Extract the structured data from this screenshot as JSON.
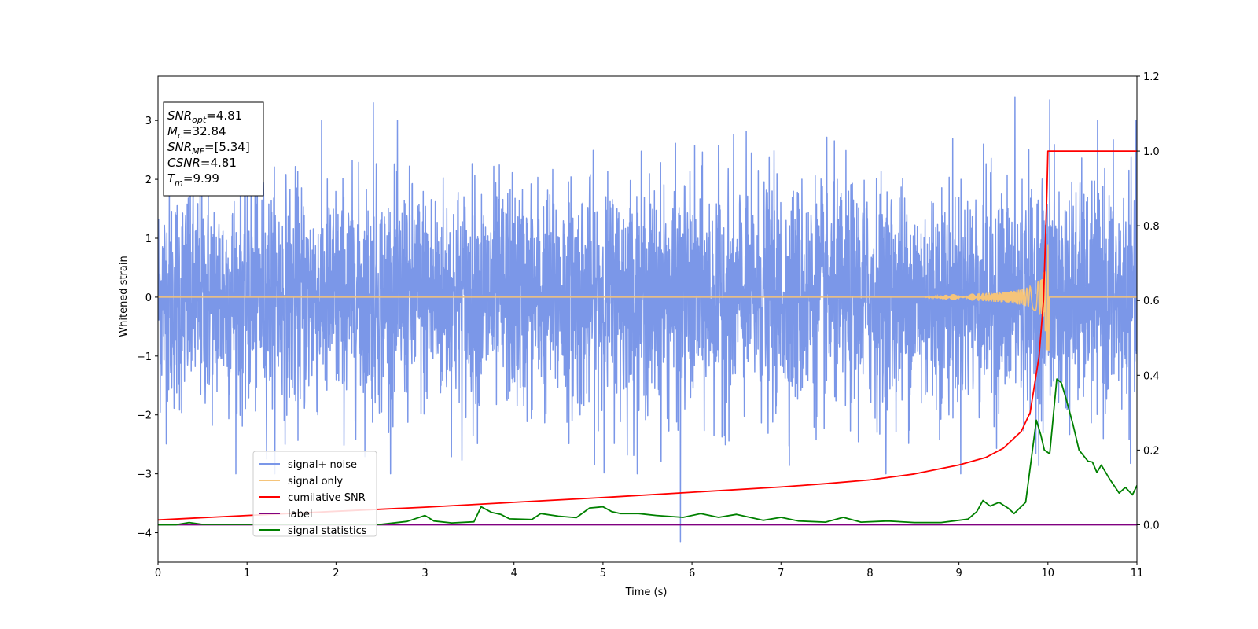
{
  "chart_data": {
    "type": "line",
    "xlabel": "Time (s)",
    "ylabel": "Whitened strain",
    "xlim": [
      0,
      11
    ],
    "ylim_left": [
      -4.5,
      3.75
    ],
    "ylim_right": [
      -0.1,
      1.2
    ],
    "xticks": [
      "0",
      "1",
      "2",
      "3",
      "4",
      "5",
      "6",
      "7",
      "8",
      "9",
      "10",
      "11"
    ],
    "yticks_left": [
      "−4",
      "−3",
      "−2",
      "−1",
      "0",
      "1",
      "2",
      "3"
    ],
    "yticks_right": [
      "0.0",
      "0.2",
      "0.4",
      "0.6",
      "0.8",
      "1.0",
      "1.2"
    ],
    "grid": false,
    "legend_position": "lower-left",
    "info_box": {
      "lines": [
        {
          "main": "SNR",
          "sub": "opt",
          "value": "=4.81"
        },
        {
          "main": "M",
          "sub": "c",
          "value": "=32.84"
        },
        {
          "main": "SNR",
          "sub": "MF",
          "value": "=[5.34]"
        },
        {
          "main": "CSNR",
          "sub": "",
          "value": "=4.81"
        },
        {
          "main": "T",
          "sub": "m",
          "value": "=9.99"
        }
      ]
    },
    "series": [
      {
        "name": "signal+ noise",
        "color": "#7b97e8",
        "axis": "left",
        "description_stats": {
          "range": [
            -4.2,
            3.4
          ],
          "typical_std": 0.95,
          "start": 0,
          "end": 11,
          "peaks": [
            [
              2.42,
              3.3
            ],
            [
              10.02,
              3.35
            ],
            [
              9.63,
              3.4
            ],
            [
              5.87,
              -4.15
            ]
          ]
        }
      },
      {
        "name": "signal only",
        "color": "#f5c47a",
        "axis": "left",
        "chirp": {
          "start_time": 8.6,
          "merger_time": 9.99,
          "peak_amplitude": 0.9
        }
      },
      {
        "name": "cumilative SNR",
        "color": "#ff0000",
        "axis": "right",
        "x": [
          0,
          1,
          2,
          3,
          4,
          5,
          6,
          7,
          7.5,
          8,
          8.5,
          9,
          9.3,
          9.5,
          9.7,
          9.8,
          9.9,
          9.95,
          9.99,
          10.0,
          11
        ],
        "y": [
          0.013,
          0.025,
          0.036,
          0.047,
          0.06,
          0.073,
          0.087,
          0.101,
          0.11,
          0.12,
          0.136,
          0.16,
          0.18,
          0.205,
          0.25,
          0.3,
          0.45,
          0.6,
          0.9,
          1.0,
          1.0
        ]
      },
      {
        "name": "label",
        "color": "#800080",
        "axis": "right",
        "x": [
          0,
          11
        ],
        "y": [
          0.0,
          0.0
        ]
      },
      {
        "name": "signal statistics",
        "color": "#008000",
        "axis": "right",
        "x": [
          0,
          0.2,
          0.35,
          0.5,
          1,
          1.5,
          2,
          2.5,
          2.8,
          3.0,
          3.1,
          3.3,
          3.55,
          3.63,
          3.75,
          3.85,
          3.95,
          4.2,
          4.3,
          4.5,
          4.7,
          4.85,
          5.0,
          5.1,
          5.2,
          5.4,
          5.6,
          5.9,
          6.1,
          6.3,
          6.5,
          6.8,
          7.0,
          7.2,
          7.5,
          7.7,
          7.9,
          8.2,
          8.5,
          8.8,
          9.1,
          9.2,
          9.27,
          9.35,
          9.45,
          9.55,
          9.62,
          9.75,
          9.87,
          9.92,
          9.96,
          10.02,
          10.1,
          10.15,
          10.2,
          10.28,
          10.35,
          10.45,
          10.5,
          10.55,
          10.6,
          10.7,
          10.8,
          10.87,
          10.95,
          11
        ],
        "y": [
          0.0,
          0.0,
          0.006,
          0.001,
          0.001,
          0.001,
          0.001,
          0.001,
          0.009,
          0.025,
          0.01,
          0.005,
          0.008,
          0.048,
          0.033,
          0.028,
          0.016,
          0.014,
          0.03,
          0.023,
          0.019,
          0.045,
          0.048,
          0.035,
          0.03,
          0.03,
          0.025,
          0.02,
          0.03,
          0.02,
          0.028,
          0.012,
          0.02,
          0.01,
          0.007,
          0.02,
          0.007,
          0.01,
          0.006,
          0.006,
          0.015,
          0.035,
          0.065,
          0.05,
          0.06,
          0.045,
          0.03,
          0.06,
          0.28,
          0.24,
          0.2,
          0.19,
          0.39,
          0.38,
          0.34,
          0.27,
          0.2,
          0.17,
          0.168,
          0.14,
          0.16,
          0.12,
          0.085,
          0.1,
          0.08,
          0.105
        ]
      }
    ]
  }
}
